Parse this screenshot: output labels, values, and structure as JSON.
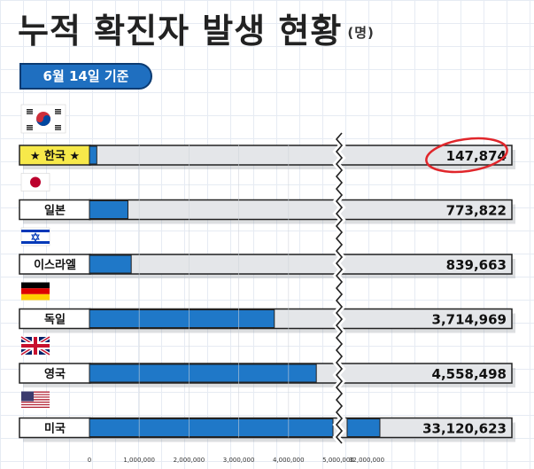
{
  "title": "누적 확진자 발생 현황",
  "unit": "(명)",
  "date_badge": "6월 14일 기준",
  "chart_data": {
    "type": "bar",
    "orientation": "horizontal",
    "title": "누적 확진자 발생 현황",
    "unit": "(명)",
    "xlabel": "",
    "ylabel": "",
    "categories": [
      "한국",
      "일본",
      "이스라엘",
      "독일",
      "영국",
      "미국"
    ],
    "values": [
      147874,
      773822,
      839663,
      3714969,
      4558498,
      33120623
    ],
    "value_labels": [
      "147,874",
      "773,822",
      "839,663",
      "3,714,969",
      "4,558,498",
      "33,120,623"
    ],
    "highlight": "한국",
    "axis_break_after": 5000000,
    "x_ticks": [
      0,
      1000000,
      2000000,
      3000000,
      4000000,
      5000000,
      32000000
    ],
    "x_tick_labels": [
      "0",
      "1,000,000",
      "2,000,000",
      "3,000,000",
      "4,000,000",
      "5,000,000",
      "32,000,000"
    ],
    "bar_color": "#1f78c8",
    "track_color": "#e4e6e9",
    "highlight_color": "#f7e94a",
    "circle_color": "#e0262b"
  }
}
